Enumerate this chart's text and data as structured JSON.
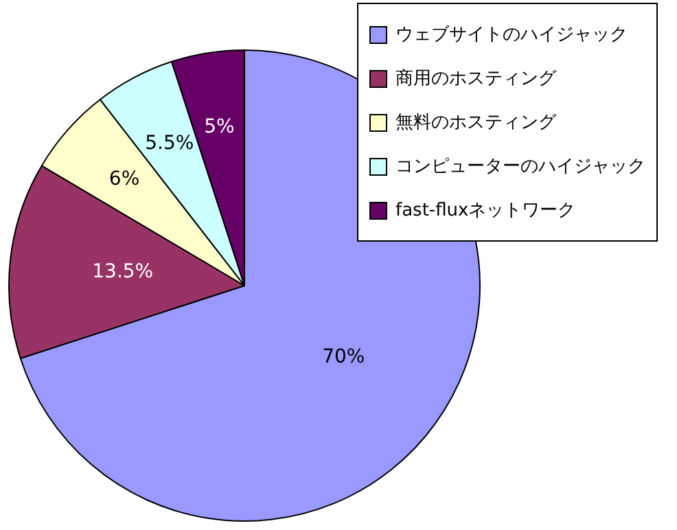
{
  "chart_data": {
    "type": "pie",
    "categories": [
      "ウェブサイトのハイジャック",
      "商用のホスティング",
      "無料のホスティング",
      "コンピューターのハイジャック",
      "fast-fluxネットワーク"
    ],
    "values": [
      70,
      13.5,
      6,
      5.5,
      5
    ],
    "colors": [
      "#9999ff",
      "#993366",
      "#ffffcc",
      "#ccffff",
      "#660066"
    ],
    "value_labels": [
      "70%",
      "13.5%",
      "6%",
      "5.5%",
      "5%"
    ],
    "legend": "top right"
  }
}
